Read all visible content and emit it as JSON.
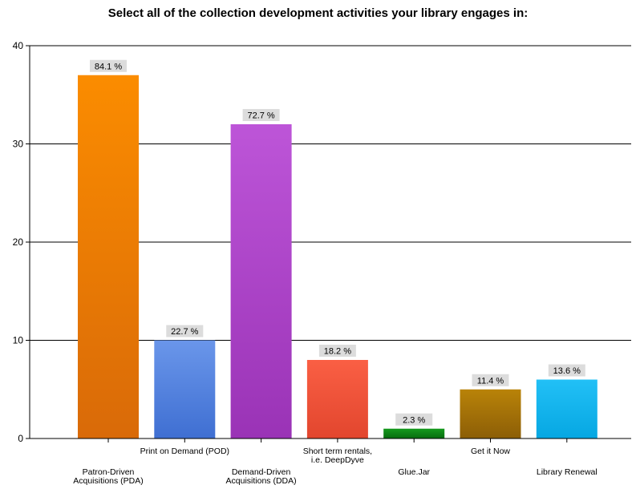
{
  "chart_data": {
    "type": "bar",
    "title": "Select all of the collection development  activities your library engages in:",
    "xlabel": "",
    "ylabel": "",
    "ylim": [
      0,
      40
    ],
    "yticks": [
      0,
      10,
      20,
      30,
      40
    ],
    "grid": true,
    "categories": [
      [
        "Patron-Driven",
        "Acquisitions (PDA)"
      ],
      [
        "Print on Demand (POD)"
      ],
      [
        "Demand-Driven",
        "Acquisitions (DDA)"
      ],
      [
        "Short term rentals,",
        "i.e. DeepDyve"
      ],
      [
        "Glue.Jar"
      ],
      [
        "Get it Now"
      ],
      [
        "Library Renewal"
      ]
    ],
    "values": [
      37,
      10,
      32,
      8,
      1,
      5,
      6
    ],
    "data_labels": [
      "84.1 %",
      "22.7 %",
      "72.7 %",
      "18.2 %",
      "2.3 %",
      "11.4 %",
      "13.6 %"
    ],
    "bar_colors": [
      [
        "#fb8c00",
        "#d96a08"
      ],
      [
        "#6a96ea",
        "#3f6fd2"
      ],
      [
        "#bd55d8",
        "#9a33b6"
      ],
      [
        "#fa5f44",
        "#e2462e"
      ],
      [
        "#169a1e",
        "#086c0f"
      ],
      [
        "#b98308",
        "#8c5e07"
      ],
      [
        "#22c0f6",
        "#06a7e2"
      ]
    ]
  }
}
